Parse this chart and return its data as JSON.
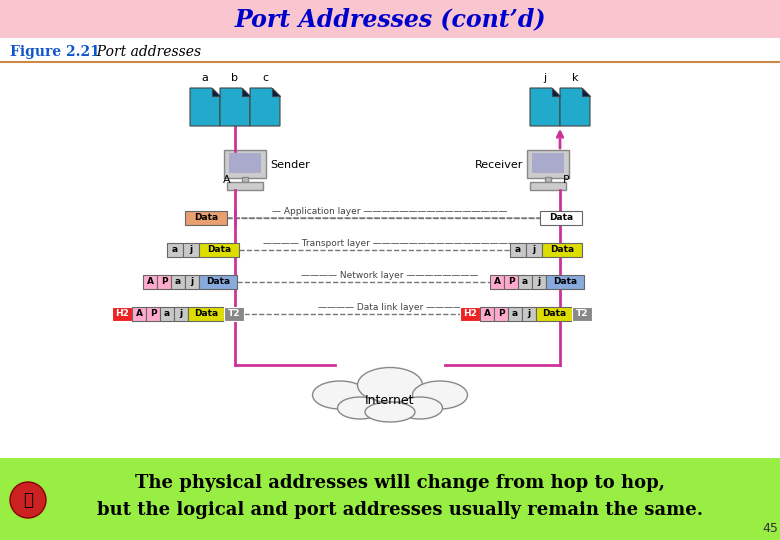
{
  "title": "Port Addresses (cont’d)",
  "title_bg": "#f9c6d0",
  "title_color": "#0000cc",
  "figure_label": "Figure 2.21",
  "figure_subtitle": "  Port addresses",
  "bottom_bg": "#99ee44",
  "bottom_text_line1": "The physical addresses will change from hop to hop,",
  "bottom_text_line2": "but the logical and port addresses usually remain the same.",
  "page_number": "45",
  "slide_bg": "#ffffff",
  "doc_color": "#22aacc",
  "pink": "#cc3399",
  "c_salmon": "#e8a070",
  "c_yellow": "#dddd00",
  "c_gray": "#c8c8c8",
  "c_blue_data": "#88aadd",
  "c_pink_hdr": "#ffaacc",
  "c_red": "#ee2222",
  "c_dark_gray": "#888888",
  "c_white": "#ffffff",
  "c_comp": "#bbbbbb"
}
